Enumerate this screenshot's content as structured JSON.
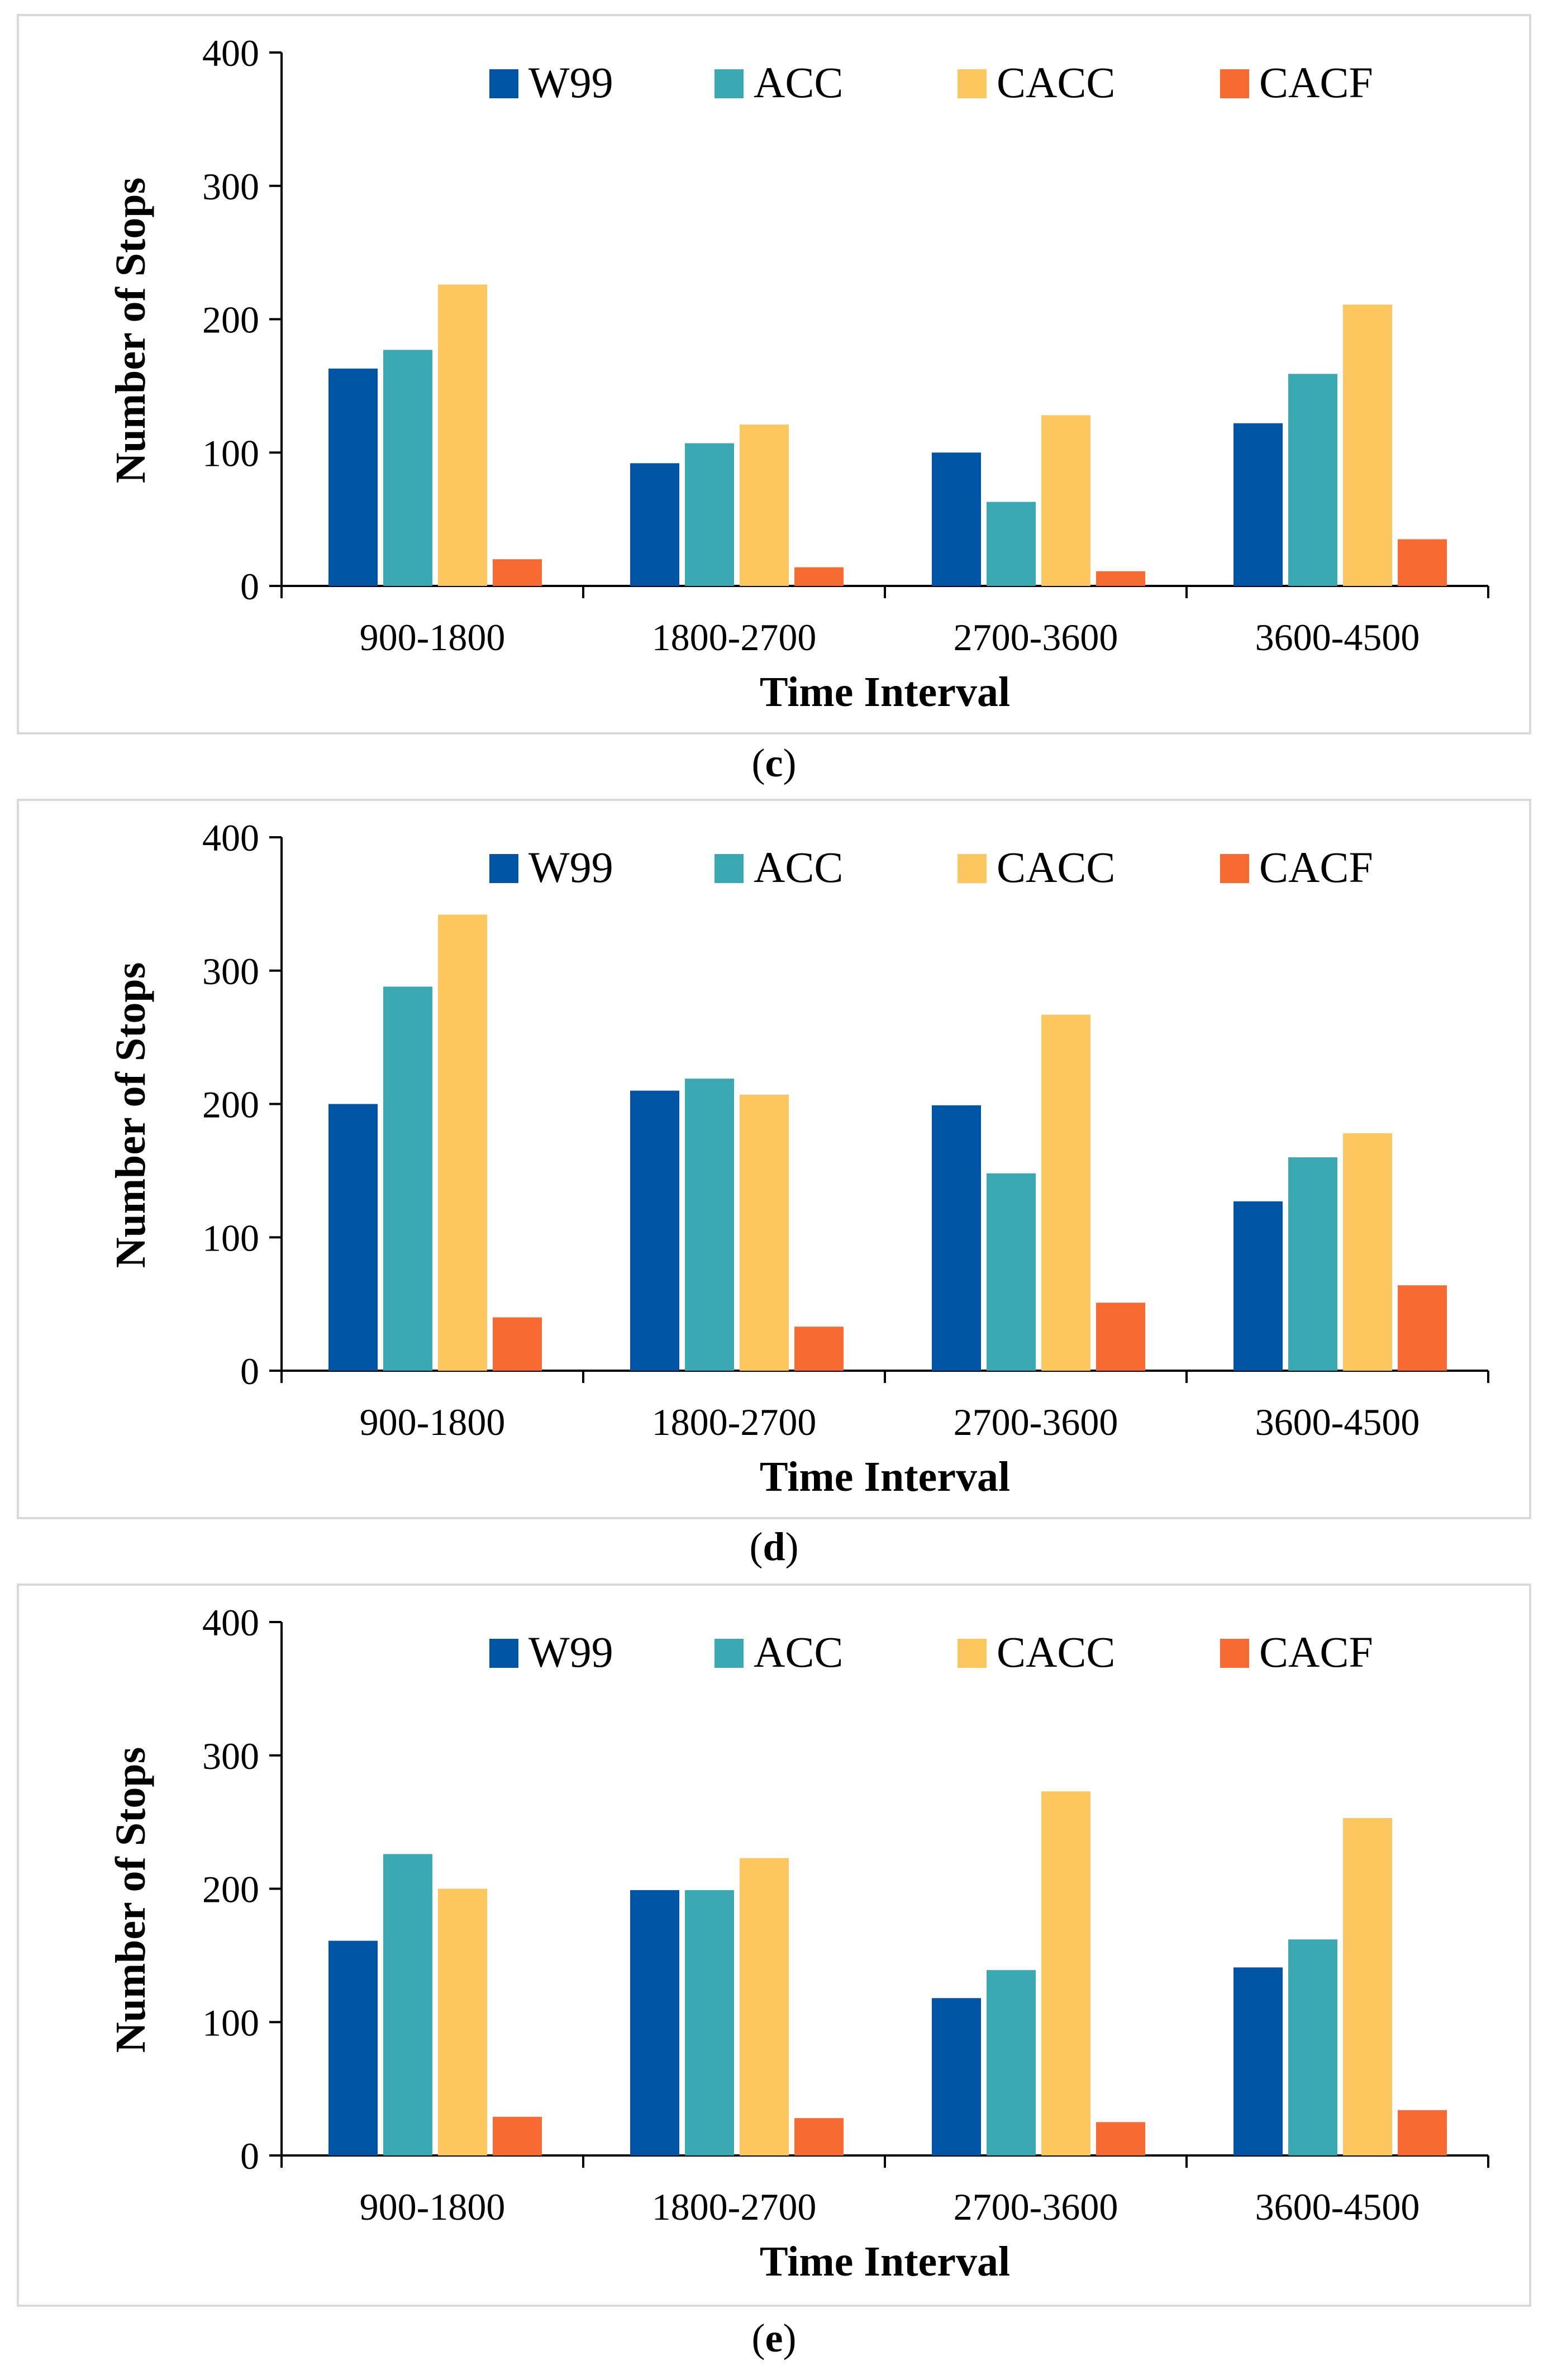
{
  "colors": {
    "W99": "#0054a6",
    "ACC": "#3aa8b2",
    "CACC": "#fdc75f",
    "CACF": "#f76b32"
  },
  "chart_data": [
    {
      "type": "bar",
      "panel_label": "c",
      "categories": [
        "900-1800",
        "1800-2700",
        "2700-3600",
        "3600-4500"
      ],
      "series": [
        {
          "name": "W99",
          "values": [
            163,
            92,
            100,
            122
          ]
        },
        {
          "name": "ACC",
          "values": [
            177,
            107,
            63,
            159
          ]
        },
        {
          "name": "CACC",
          "values": [
            226,
            121,
            128,
            211
          ]
        },
        {
          "name": "CACF",
          "values": [
            20,
            14,
            11,
            35
          ]
        }
      ],
      "ylim": [
        0,
        400
      ],
      "yticks": [
        0,
        100,
        200,
        300,
        400
      ],
      "xlabel": "Time Interval",
      "ylabel": "Number of  Stops",
      "legend": "top"
    },
    {
      "type": "bar",
      "panel_label": "d",
      "categories": [
        "900-1800",
        "1800-2700",
        "2700-3600",
        "3600-4500"
      ],
      "series": [
        {
          "name": "W99",
          "values": [
            200,
            210,
            199,
            127
          ]
        },
        {
          "name": "ACC",
          "values": [
            288,
            219,
            148,
            160
          ]
        },
        {
          "name": "CACC",
          "values": [
            342,
            207,
            267,
            178
          ]
        },
        {
          "name": "CACF",
          "values": [
            40,
            33,
            51,
            64
          ]
        }
      ],
      "ylim": [
        0,
        400
      ],
      "yticks": [
        0,
        100,
        200,
        300,
        400
      ],
      "xlabel": "Time Interval",
      "ylabel": "Number of  Stops",
      "legend": "top"
    },
    {
      "type": "bar",
      "panel_label": "e",
      "categories": [
        "900-1800",
        "1800-2700",
        "2700-3600",
        "3600-4500"
      ],
      "series": [
        {
          "name": "W99",
          "values": [
            161,
            199,
            118,
            141
          ]
        },
        {
          "name": "ACC",
          "values": [
            226,
            199,
            139,
            162
          ]
        },
        {
          "name": "CACC",
          "values": [
            200,
            223,
            273,
            253
          ]
        },
        {
          "name": "CACF",
          "values": [
            29,
            28,
            25,
            34
          ]
        }
      ],
      "ylim": [
        0,
        400
      ],
      "yticks": [
        0,
        100,
        200,
        300,
        400
      ],
      "xlabel": "Time Interval",
      "ylabel": "Number of  Stops",
      "legend": "top"
    }
  ]
}
